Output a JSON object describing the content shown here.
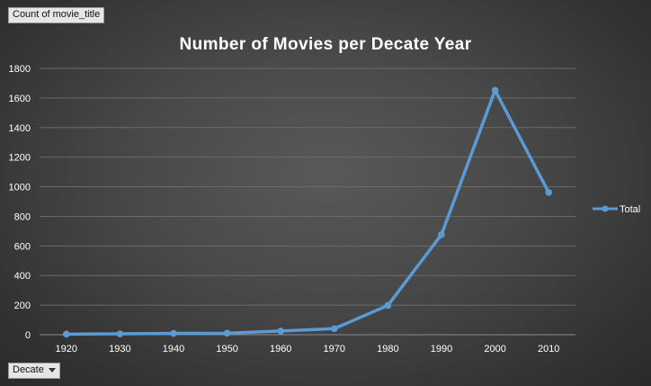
{
  "pivot": {
    "value_field_label": "Count of movie_title",
    "axis_field_label": "Decate"
  },
  "chart_data": {
    "type": "line",
    "title": "Number of Movies per Decate Year",
    "xlabel": "",
    "ylabel": "",
    "categories": [
      "1920",
      "1930",
      "1940",
      "1950",
      "1960",
      "1970",
      "1980",
      "1990",
      "2000",
      "2010"
    ],
    "series": [
      {
        "name": "Total",
        "color": "#5b9bd5",
        "values": [
          4,
          6,
          9,
          10,
          25,
          41,
          198,
          677,
          1652,
          962
        ]
      }
    ],
    "yticks": [
      0,
      200,
      400,
      600,
      800,
      1000,
      1200,
      1400,
      1600,
      1800
    ],
    "ylim": [
      0,
      1800
    ],
    "grid": true,
    "legend_position": "right"
  }
}
